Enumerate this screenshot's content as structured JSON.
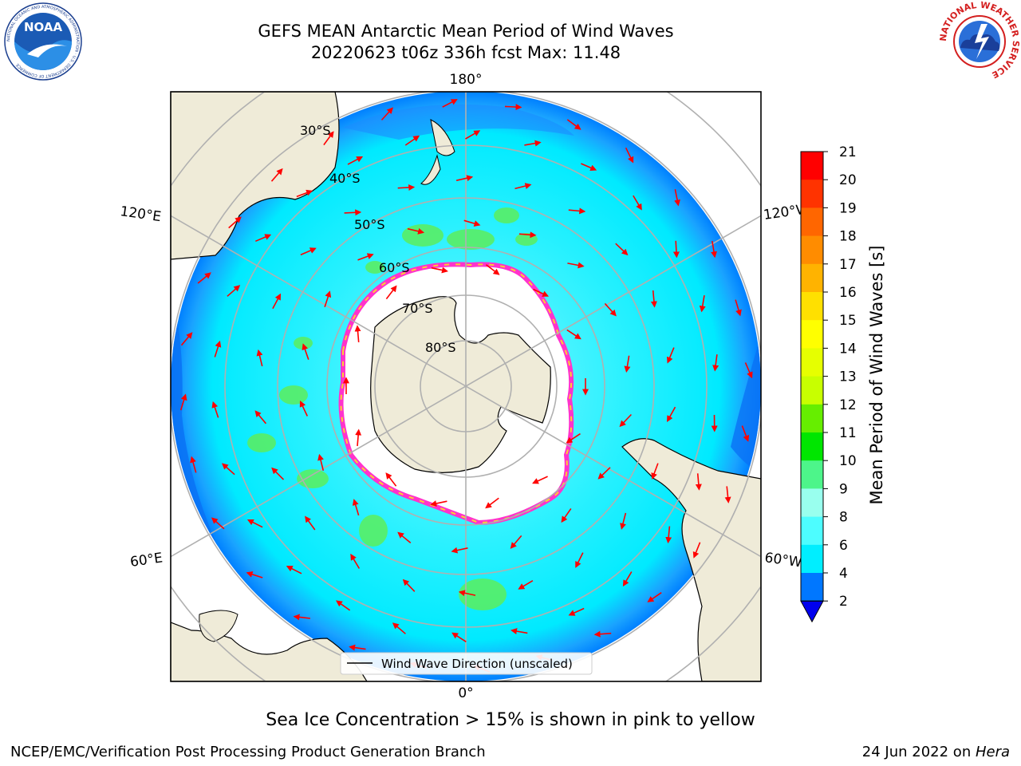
{
  "title_line1": "GEFS MEAN Antarctic Mean Period of Wind Waves",
  "title_line2": "20220623 t06z 336h fcst   Max: 11.48",
  "caption": "Sea Ice Concentration > 15% is shown in pink to yellow",
  "footer_left": "NCEP/EMC/Verification Post Processing Product Generation Branch",
  "footer_right_date": "24 Jun 2022 on ",
  "footer_right_host": "Hera",
  "legend_label": "Wind Wave Direction (unscaled)",
  "logos": {
    "noaa_text": "NOAA",
    "noaa_ring": "NATIONAL OCEANIC AND ATMOSPHERIC ADMINISTRATION · U.S. DEPARTMENT OF COMMERCE",
    "nws_ring": "NATIONAL WEATHER SERVICE"
  },
  "map": {
    "projection": "south polar stereographic",
    "lat_labels": [
      "30°S",
      "40°S",
      "50°S",
      "60°S",
      "70°S",
      "80°S"
    ],
    "lon_labels": {
      "top": "180°",
      "bottom": "0°",
      "upper_left": "120°E",
      "lower_left": "60°E",
      "upper_right": "120°W",
      "lower_right": "60°W"
    },
    "colors": {
      "ocean_cyan": "#00eaff",
      "ocean_light": "#7ff7ff",
      "ocean_blue": "#0080ff",
      "swell_green": "#5cee5c",
      "ice": "#ffffff",
      "land": "#efebd8",
      "arrow": "#ff0000",
      "ice_edge": "#ff33cc"
    }
  },
  "colorbar": {
    "label": "Mean Period of Wind Waves [s]",
    "ticks": [
      "21",
      "20",
      "19",
      "18",
      "17",
      "16",
      "15",
      "14",
      "13",
      "12",
      "11",
      "10",
      "9",
      "8",
      "6",
      "4",
      "2"
    ],
    "bins": [
      {
        "range": "20-21",
        "color": "#ff0000"
      },
      {
        "range": "19-20",
        "color": "#ff3300"
      },
      {
        "range": "18-19",
        "color": "#ff6600"
      },
      {
        "range": "17-18",
        "color": "#ff8c00"
      },
      {
        "range": "16-17",
        "color": "#ffb300"
      },
      {
        "range": "15-16",
        "color": "#ffe000"
      },
      {
        "range": "14-15",
        "color": "#ffff00"
      },
      {
        "range": "13-14",
        "color": "#e6ff00"
      },
      {
        "range": "12-13",
        "color": "#c8ff00"
      },
      {
        "range": "11-12",
        "color": "#66ee00"
      },
      {
        "range": "10-11",
        "color": "#00e600"
      },
      {
        "range": "9-10",
        "color": "#4df58a"
      },
      {
        "range": "8-9",
        "color": "#99ffee"
      },
      {
        "range": "6-8",
        "color": "#4dfdff"
      },
      {
        "range": "4-6",
        "color": "#00eeff"
      },
      {
        "range": "2-4",
        "color": "#0077ff"
      },
      {
        "range": "<2",
        "color": "#0000ee"
      }
    ]
  }
}
